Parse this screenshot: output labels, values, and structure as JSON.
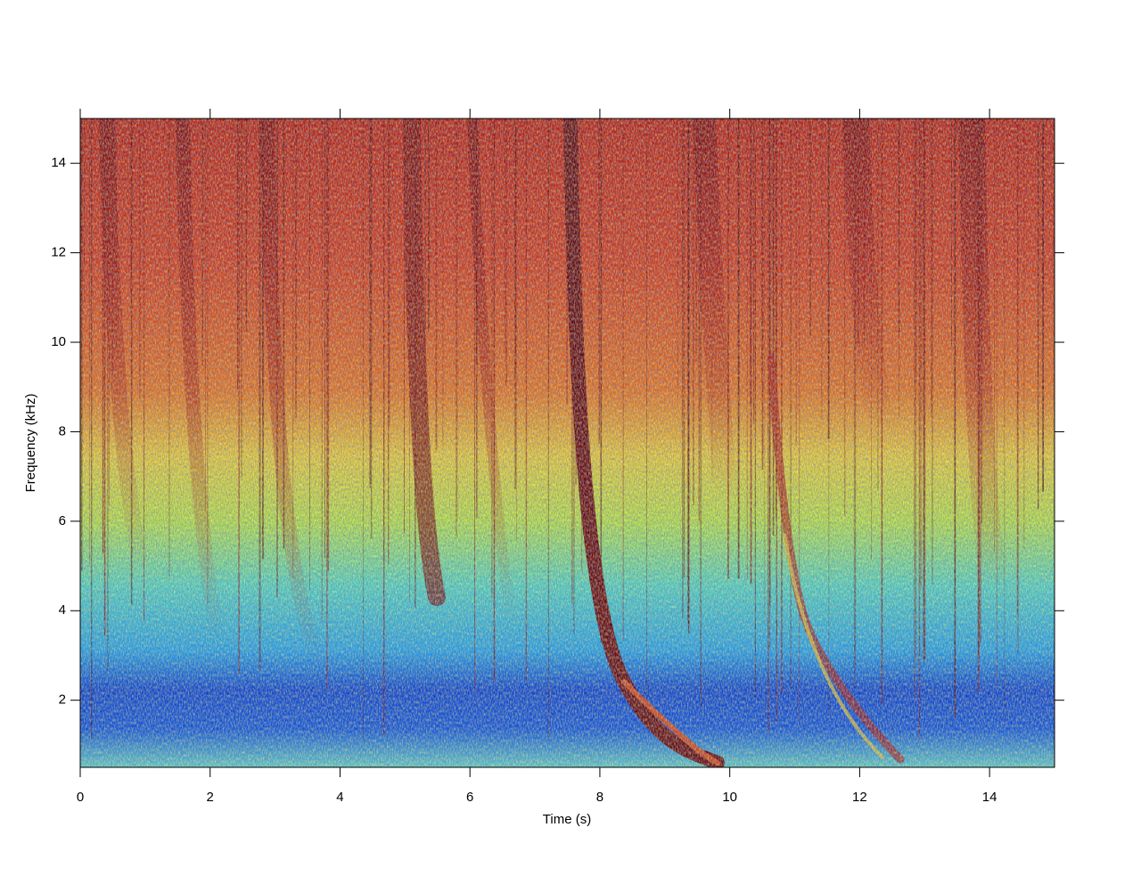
{
  "chart_data": {
    "type": "spectrogram",
    "x_label": "Time (s)",
    "y_label": "Frequency (kHz)",
    "xlim": [
      0,
      15
    ],
    "ylim": [
      0.5,
      15
    ],
    "xticks": [
      0,
      2,
      4,
      6,
      8,
      10,
      12,
      14
    ],
    "yticks": [
      2,
      4,
      6,
      8,
      10,
      12,
      14
    ]
  }
}
